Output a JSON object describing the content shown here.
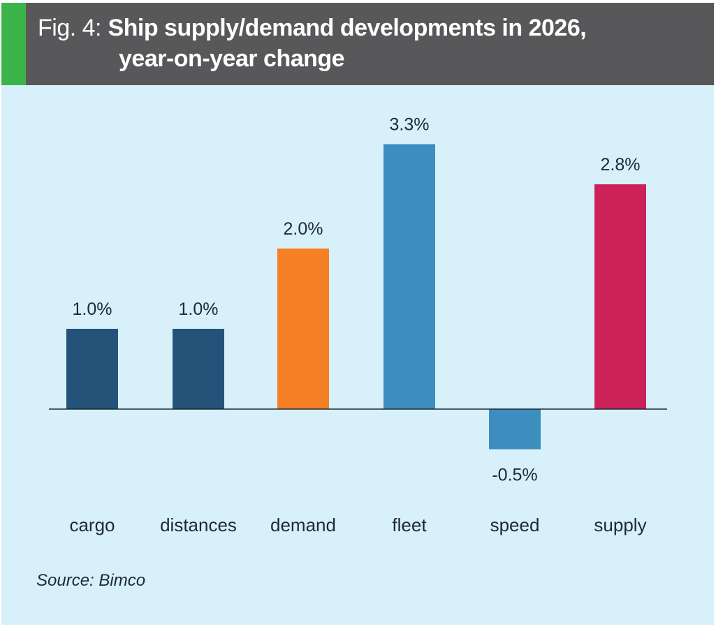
{
  "header": {
    "prefix": "Fig. 4:",
    "title_line1": "Ship supply/demand developments in 2026,",
    "title_line2": "year-on-year change"
  },
  "source": "Source: Bimco",
  "colors": {
    "header_bg": "#58585a",
    "accent_stripe": "#3bb54a",
    "panel_bg": "#d8f0fa",
    "dark_blue": "#24537a",
    "orange": "#f58025",
    "mid_blue": "#3d8dbe",
    "crimson": "#cc2158",
    "text": "#1e2a33"
  },
  "chart_data": {
    "type": "bar",
    "title": "Ship supply/demand developments in 2026, year-on-year change",
    "xlabel": "",
    "ylabel": "",
    "unit": "%",
    "categories": [
      "cargo",
      "distances",
      "demand",
      "fleet",
      "speed",
      "supply"
    ],
    "values": [
      1.0,
      1.0,
      2.0,
      3.3,
      -0.5,
      2.8
    ],
    "labels": [
      "1.0%",
      "1.0%",
      "2.0%",
      "3.3%",
      "-0.5%",
      "2.8%"
    ],
    "bar_colors": [
      "#24537a",
      "#24537a",
      "#f58025",
      "#3d8dbe",
      "#3d8dbe",
      "#cc2158"
    ],
    "grid": false,
    "legend": "none",
    "ylim": [
      -0.5,
      3.3
    ],
    "source": "Bimco"
  }
}
